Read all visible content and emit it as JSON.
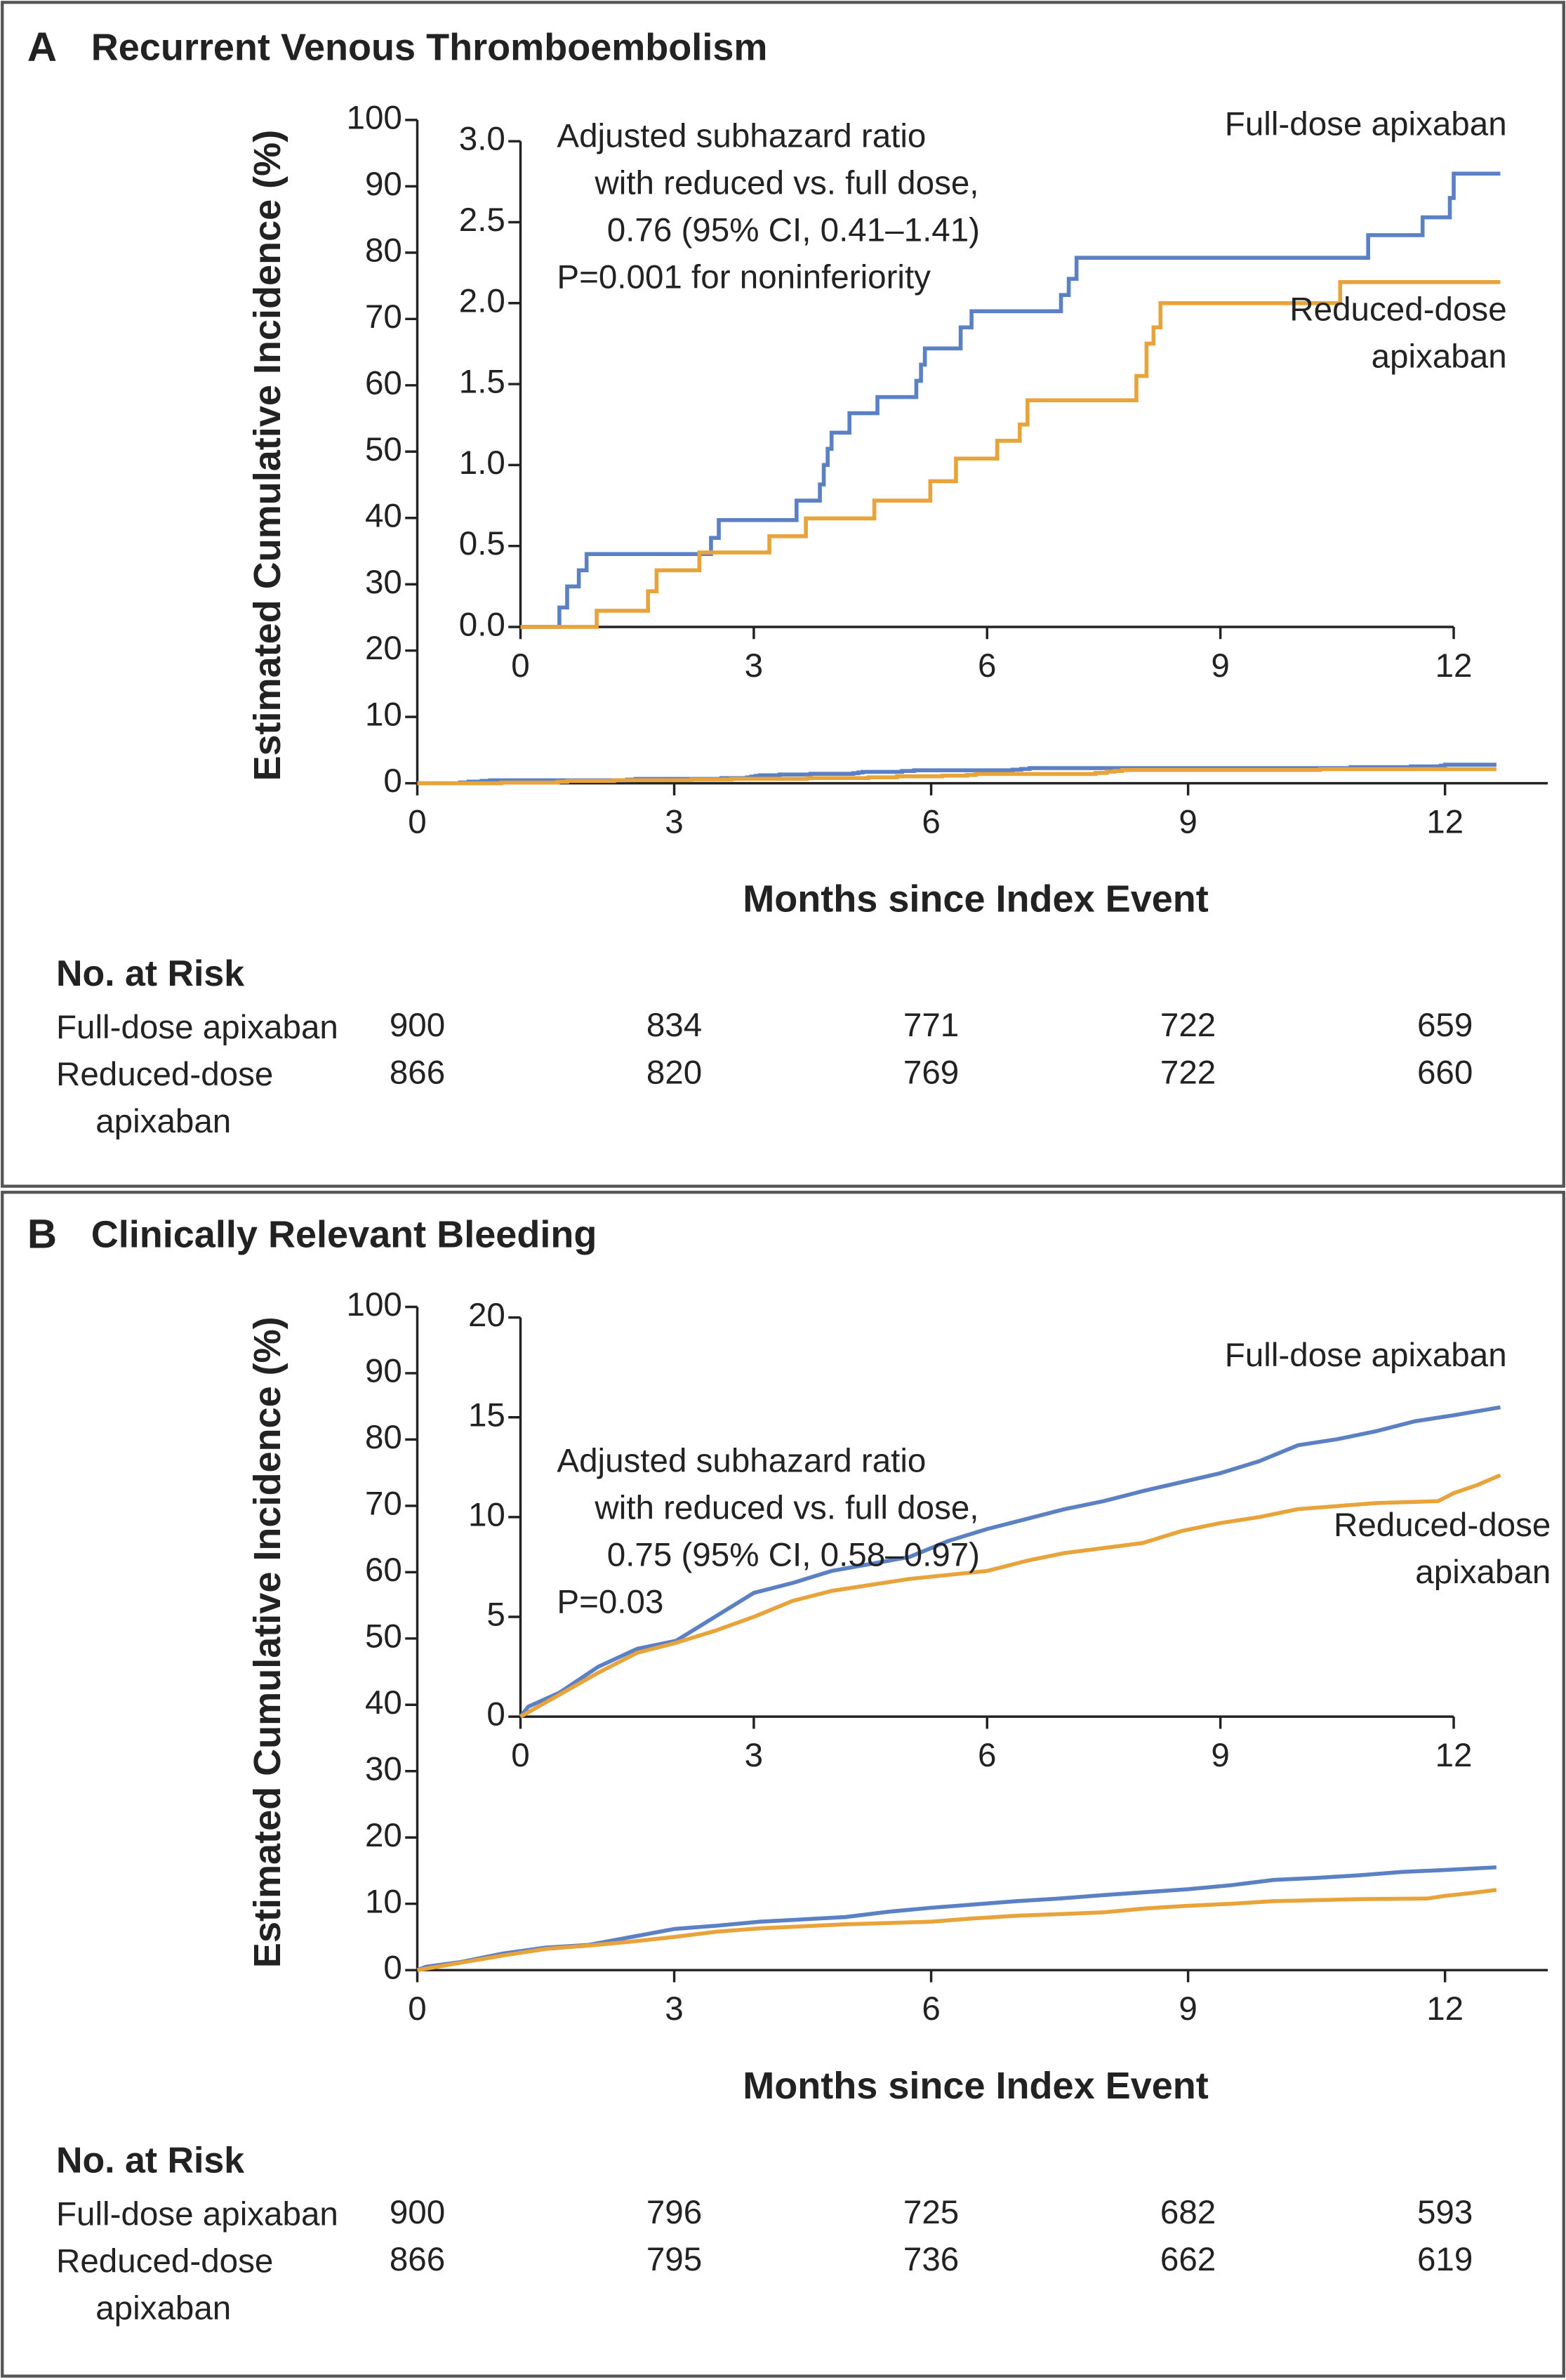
{
  "chart_data": [
    {
      "type": "step",
      "label": "A",
      "title": "Recurrent Venous Thromboembolism",
      "xlabel": "Months since Index Event",
      "ylabel": "Estimated Cumulative Incidence (%)",
      "xlim": [
        0,
        13.2
      ],
      "xticks": [
        0,
        3,
        6,
        9,
        12
      ],
      "ylim": [
        0,
        100
      ],
      "yticks": [
        0,
        10,
        20,
        30,
        40,
        50,
        60,
        70,
        80,
        90,
        100
      ],
      "series": [
        {
          "name": "Full-dose apixaban",
          "color": "#5b80c4",
          "x": [
            0,
            0.5,
            0.6,
            0.75,
            0.85,
            2.45,
            2.55,
            3.55,
            3.85,
            3.9,
            3.95,
            4.0,
            4.23,
            4.59,
            5.09,
            5.15,
            5.2,
            5.66,
            5.8,
            6.95,
            7.05,
            7.15,
            10.9,
            11.6,
            11.95,
            12.0,
            12.6
          ],
          "values": [
            0,
            0.12,
            0.25,
            0.35,
            0.45,
            0.55,
            0.66,
            0.78,
            0.88,
            1.0,
            1.1,
            1.2,
            1.32,
            1.42,
            1.52,
            1.62,
            1.72,
            1.85,
            1.95,
            2.05,
            2.15,
            2.28,
            2.42,
            2.53,
            2.65,
            2.8,
            2.8
          ],
          "at_risk": [
            900,
            834,
            771,
            722,
            659
          ]
        },
        {
          "name": "Reduced-dose apixaban",
          "color": "#e8a33a",
          "x": [
            0,
            0.98,
            1.64,
            1.75,
            2.3,
            3.2,
            3.67,
            4.55,
            5.27,
            5.6,
            6.13,
            6.42,
            6.52,
            7.92,
            8.05,
            8.14,
            8.23,
            10.54,
            12.6
          ],
          "values": [
            0,
            0.1,
            0.22,
            0.35,
            0.46,
            0.56,
            0.67,
            0.78,
            0.9,
            1.04,
            1.15,
            1.25,
            1.4,
            1.55,
            1.75,
            1.85,
            2.0,
            2.13,
            2.13
          ],
          "at_risk": [
            866,
            820,
            769,
            722,
            660
          ]
        }
      ],
      "inset": {
        "xlim": [
          0,
          12
        ],
        "xticks": [
          0,
          3,
          6,
          9,
          12
        ],
        "ylim": [
          0,
          3
        ],
        "yticks": [
          {
            "value": 0,
            "label": "0.0"
          },
          {
            "value": 0.5,
            "label": "0.5"
          },
          {
            "value": 1,
            "label": "1.0"
          },
          {
            "value": 1.5,
            "label": "1.5"
          },
          {
            "value": 2,
            "label": "2.0"
          },
          {
            "value": 2.5,
            "label": "2.5"
          },
          {
            "value": 3,
            "label": "3.0"
          }
        ],
        "annotation": [
          "Adjusted subhazard ratio",
          "with reduced vs. full dose,",
          "0.76 (95% CI, 0.41–1.41)",
          "P=0.001 for noninferiority"
        ]
      },
      "risk_table": {
        "title": "No. at Risk"
      }
    },
    {
      "type": "line",
      "label": "B",
      "title": "Clinically Relevant Bleeding",
      "xlabel": "Months since Index Event",
      "ylabel": "Estimated Cumulative Incidence (%)",
      "xlim": [
        0,
        13.2
      ],
      "xticks": [
        0,
        3,
        6,
        9,
        12
      ],
      "ylim": [
        0,
        100
      ],
      "yticks": [
        0,
        10,
        20,
        30,
        40,
        50,
        60,
        70,
        80,
        90,
        100
      ],
      "series": [
        {
          "name": "Full-dose apixaban",
          "color": "#5b80c4",
          "x": [
            0,
            0.1,
            0.5,
            1,
            1.5,
            2,
            2.5,
            3,
            3.5,
            4,
            5,
            5.5,
            6,
            6.5,
            7,
            7.5,
            8,
            9,
            9.5,
            10,
            10.5,
            11,
            11.5,
            12,
            12.6
          ],
          "values": [
            0,
            0.5,
            1.2,
            2.5,
            3.4,
            3.8,
            5,
            6.2,
            6.7,
            7.3,
            8,
            8.8,
            9.4,
            9.9,
            10.4,
            10.8,
            11.3,
            12.2,
            12.8,
            13.6,
            13.9,
            14.3,
            14.8,
            15.1,
            15.5
          ],
          "at_risk": [
            900,
            796,
            725,
            682,
            593
          ]
        },
        {
          "name": "Reduced-dose apixaban",
          "color": "#e8a33a",
          "x": [
            0,
            0.5,
            1,
            1.5,
            2,
            2.5,
            3,
            3.5,
            4,
            5,
            6,
            6.5,
            7,
            8,
            8.5,
            9,
            9.5,
            10,
            11,
            11.8,
            12,
            12.3,
            12.6
          ],
          "values": [
            0,
            1.1,
            2.2,
            3.2,
            3.7,
            4.3,
            5,
            5.8,
            6.3,
            6.9,
            7.3,
            7.8,
            8.2,
            8.7,
            9.3,
            9.7,
            10,
            10.4,
            10.7,
            10.8,
            11.2,
            11.6,
            12.1
          ],
          "at_risk": [
            866,
            795,
            736,
            662,
            619
          ]
        }
      ],
      "inset": {
        "xlim": [
          0,
          12
        ],
        "xticks": [
          0,
          3,
          6,
          9,
          12
        ],
        "ylim": [
          0,
          20
        ],
        "yticks": [
          0,
          5,
          10,
          15,
          20
        ],
        "annotation": [
          "Adjusted subhazard ratio",
          "with reduced vs. full dose,",
          "0.75 (95% CI, 0.58–0.97)",
          "P=0.03"
        ]
      },
      "risk_table": {
        "title": "No. at Risk"
      }
    }
  ]
}
